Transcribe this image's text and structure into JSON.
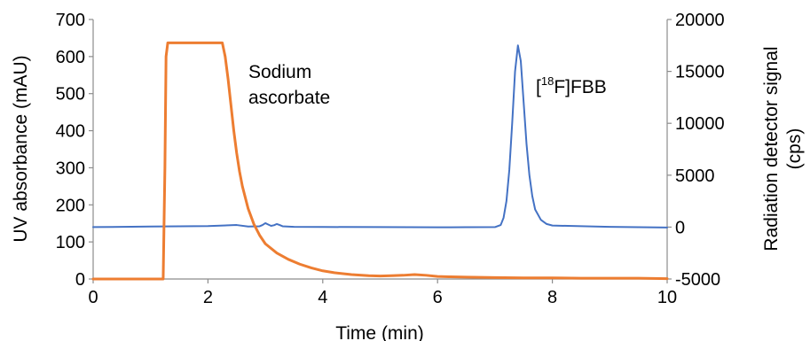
{
  "chart_data": {
    "type": "line",
    "title": "",
    "xlabel": "Time (min)",
    "ylabel_left": "UV absorbance (mAU)",
    "ylabel_right": [
      "Radiation detector signal",
      "(cps)"
    ],
    "xlim": [
      0,
      10
    ],
    "ylim_left": [
      0,
      700
    ],
    "ylim_right": [
      -5000,
      20000
    ],
    "x_ticks": [
      "0",
      "2",
      "4",
      "6",
      "8",
      "10"
    ],
    "y_left_ticks": [
      "0",
      "100",
      "200",
      "300",
      "400",
      "500",
      "600",
      "700"
    ],
    "y_right_ticks": [
      "-5000",
      "0",
      "5000",
      "10000",
      "15000",
      "20000"
    ],
    "grid": false,
    "legend": "none",
    "annotations": {
      "sodium_line1": "Sodium",
      "sodium_line2": "ascorbate",
      "fbb_pre": "[",
      "fbb_sup": "18",
      "fbb_post": "F]FBB"
    },
    "series": [
      {
        "axis": "left",
        "color": "#ED7D31",
        "x": [
          0,
          1.22,
          1.25,
          1.27,
          1.3,
          1.4,
          1.6,
          1.8,
          2.0,
          2.1,
          2.2,
          2.25,
          2.3,
          2.35,
          2.4,
          2.45,
          2.5,
          2.55,
          2.6,
          2.7,
          2.8,
          2.9,
          3.0,
          3.2,
          3.4,
          3.6,
          3.8,
          4.0,
          4.2,
          4.5,
          4.8,
          5.0,
          5.2,
          5.4,
          5.6,
          5.8,
          6.0,
          6.2,
          6.5,
          7.0,
          7.5,
          8.0,
          8.5,
          9.0,
          9.5,
          10.0
        ],
        "y": [
          0,
          0,
          300,
          600,
          637,
          637,
          637,
          637,
          637,
          637,
          637,
          637,
          600,
          540,
          470,
          400,
          340,
          290,
          250,
          190,
          148,
          118,
          95,
          70,
          53,
          40,
          30,
          22,
          17,
          12,
          9,
          8,
          9,
          10,
          12,
          10,
          7,
          6,
          5,
          4,
          3,
          3,
          2,
          2,
          2,
          1
        ]
      },
      {
        "axis": "right",
        "color": "#4472C4",
        "x": [
          0,
          0.5,
          1.0,
          1.5,
          2.0,
          2.5,
          2.7,
          2.9,
          2.95,
          3.0,
          3.05,
          3.1,
          3.15,
          3.2,
          3.25,
          3.3,
          3.5,
          4.0,
          5.0,
          6.0,
          6.5,
          7.0,
          7.1,
          7.15,
          7.2,
          7.25,
          7.3,
          7.35,
          7.4,
          7.45,
          7.5,
          7.55,
          7.6,
          7.65,
          7.7,
          7.8,
          7.9,
          8.0,
          9.0,
          10.0
        ],
        "y": [
          0,
          20,
          50,
          80,
          100,
          200,
          60,
          80,
          200,
          380,
          250,
          120,
          180,
          300,
          200,
          80,
          20,
          10,
          0,
          -20,
          -10,
          0,
          200,
          900,
          2500,
          5500,
          10000,
          15000,
          17500,
          16000,
          12000,
          8000,
          5000,
          3000,
          1700,
          700,
          300,
          150,
          20,
          -40
        ]
      }
    ]
  }
}
